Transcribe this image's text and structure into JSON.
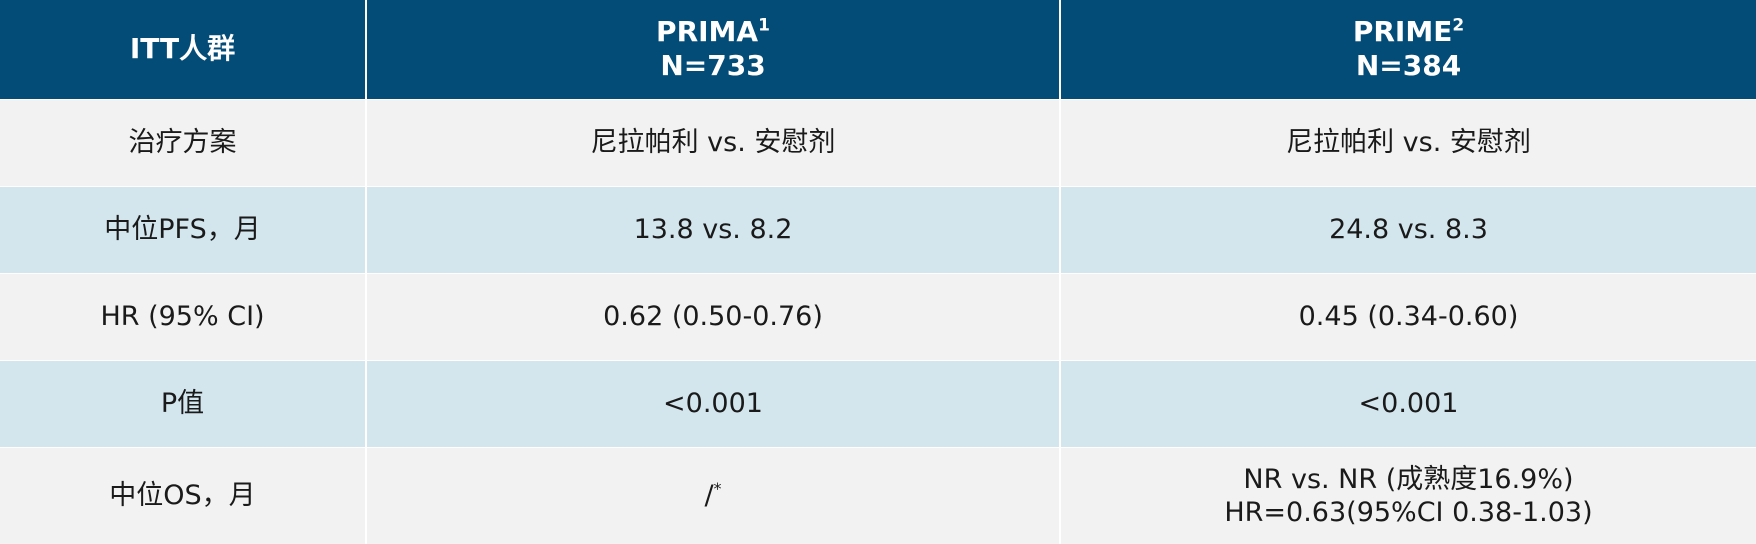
{
  "header": {
    "col1": "ITT人群",
    "col2_name": "PRIMA",
    "col2_sup": "1",
    "col2_n": "N=733",
    "col3_name": "PRIME",
    "col3_sup": "2",
    "col3_n": "N=384"
  },
  "rows": [
    {
      "label": "治疗方案",
      "prima": "尼拉帕利 vs. 安慰剂",
      "prime": "尼拉帕利 vs. 安慰剂"
    },
    {
      "label": "中位PFS，月",
      "prima": "13.8 vs. 8.2",
      "prime": "24.8 vs. 8.3"
    },
    {
      "label": "HR (95% CI)",
      "prima": "0.62 (0.50-0.76)",
      "prime": "0.45 (0.34-0.60)"
    },
    {
      "label": "P值",
      "prima": "<0.001",
      "prime": "<0.001"
    },
    {
      "label": "中位OS，月",
      "prima": "/",
      "prima_sup": "*",
      "prime_line1": "NR vs. NR (成熟度16.9%)",
      "prime_line2": "HR=0.63(95%CI 0.38-1.03)"
    }
  ],
  "colors": {
    "header_bg": "#034c78",
    "row_light": "#f2f2f2",
    "row_blue": "#d3e6ee"
  }
}
